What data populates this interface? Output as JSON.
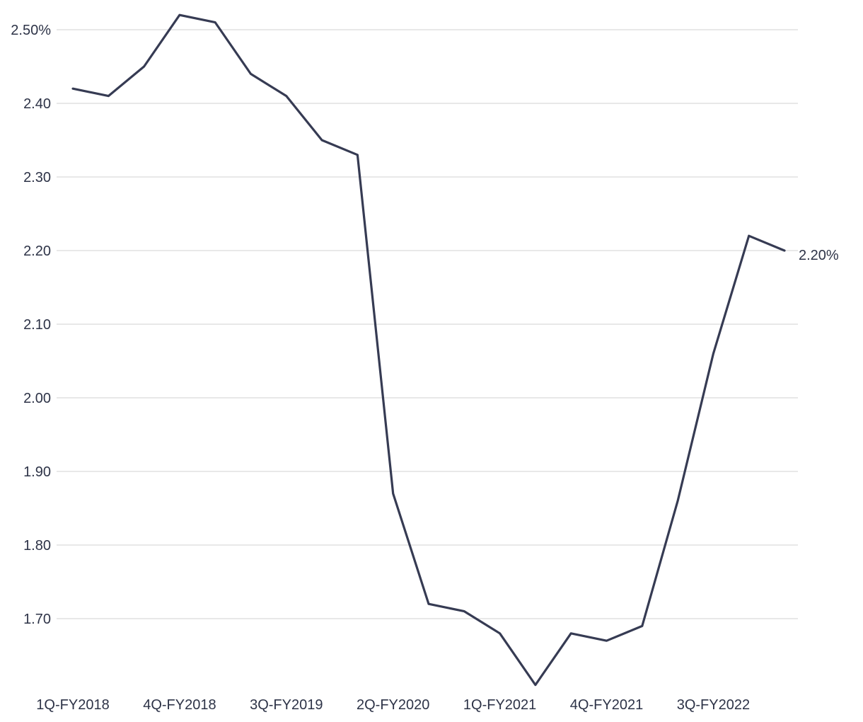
{
  "chart_data": {
    "type": "line",
    "title": "",
    "xlabel": "",
    "ylabel": "",
    "ylim": [
      1.6,
      2.52
    ],
    "grid": true,
    "y_ticks": [
      {
        "value": 2.5,
        "label": "2.50%"
      },
      {
        "value": 2.4,
        "label": "2.40"
      },
      {
        "value": 2.3,
        "label": "2.30"
      },
      {
        "value": 2.2,
        "label": "2.20"
      },
      {
        "value": 2.1,
        "label": "2.10"
      },
      {
        "value": 2.0,
        "label": "2.00"
      },
      {
        "value": 1.9,
        "label": "1.90"
      },
      {
        "value": 1.8,
        "label": "1.80"
      },
      {
        "value": 1.7,
        "label": "1.70"
      }
    ],
    "x_tick_labels": [
      {
        "index": 0,
        "label": "1Q-FY2018"
      },
      {
        "index": 3,
        "label": "4Q-FY2018"
      },
      {
        "index": 6,
        "label": "3Q-FY2019"
      },
      {
        "index": 9,
        "label": "2Q-FY2020"
      },
      {
        "index": 12,
        "label": "1Q-FY2021"
      },
      {
        "index": 15,
        "label": "4Q-FY2021"
      },
      {
        "index": 18,
        "label": "3Q-FY2022"
      }
    ],
    "series": [
      {
        "values": [
          2.42,
          2.41,
          2.45,
          2.52,
          2.51,
          2.44,
          2.41,
          2.35,
          2.33,
          1.87,
          1.72,
          1.71,
          1.68,
          1.61,
          1.68,
          1.67,
          1.69,
          1.86,
          2.06,
          2.22,
          2.2
        ],
        "color": "#363b53"
      }
    ],
    "end_label": "2.20%"
  }
}
